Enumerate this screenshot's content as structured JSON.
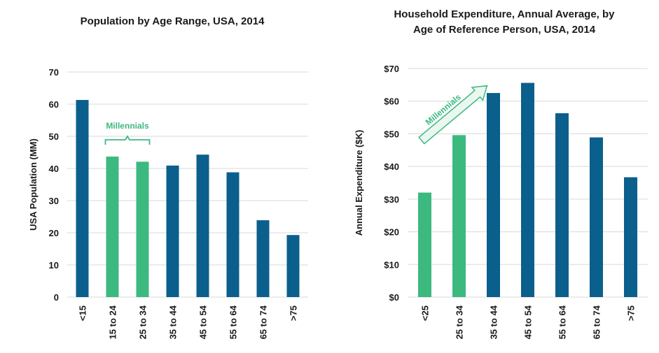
{
  "colors": {
    "blue": "#0b5f8c",
    "green": "#3cb97f",
    "grid": "#d9d9d9",
    "arrow_fill": "#eaf7f0"
  },
  "chart_data": [
    {
      "type": "bar",
      "title": "Population by Age Range, USA, 2014",
      "ylabel": "USA Population (MM)",
      "xlabel": "",
      "ylim": [
        0,
        70
      ],
      "yticks": [
        0,
        10,
        20,
        30,
        40,
        50,
        60,
        70
      ],
      "ytick_labels": [
        "0",
        "10",
        "20",
        "30",
        "40",
        "50",
        "60",
        "70"
      ],
      "categories": [
        "<15",
        "15 to 24",
        "25 to 34",
        "35 to 44",
        "45 to 54",
        "55 to 64",
        "65 to 74",
        ">75"
      ],
      "values": [
        61.3,
        43.7,
        42.1,
        40.9,
        44.3,
        38.8,
        23.9,
        19.3
      ],
      "highlight": [
        false,
        true,
        true,
        false,
        false,
        false,
        false,
        false
      ],
      "annotation": "Millennials"
    },
    {
      "type": "bar",
      "title_lines": [
        "Household Expenditure, Annual Average, by",
        "Age of Reference Person, USA, 2014"
      ],
      "ylabel": "Annual Expenditure ($K)",
      "xlabel": "",
      "ylim": [
        0,
        70
      ],
      "yticks": [
        0,
        10,
        20,
        30,
        40,
        50,
        60,
        70
      ],
      "ytick_labels": [
        "$0",
        "$10",
        "$20",
        "$30",
        "$40",
        "$50",
        "$60",
        "$70"
      ],
      "categories": [
        "<25",
        "25 to 34",
        "35 to 44",
        "45 to 54",
        "55 to 64",
        "65 to 74",
        ">75"
      ],
      "values": [
        32.0,
        49.6,
        62.5,
        65.6,
        56.3,
        48.9,
        36.7
      ],
      "highlight": [
        true,
        true,
        false,
        false,
        false,
        false,
        false
      ],
      "annotation": "Millennials"
    }
  ]
}
